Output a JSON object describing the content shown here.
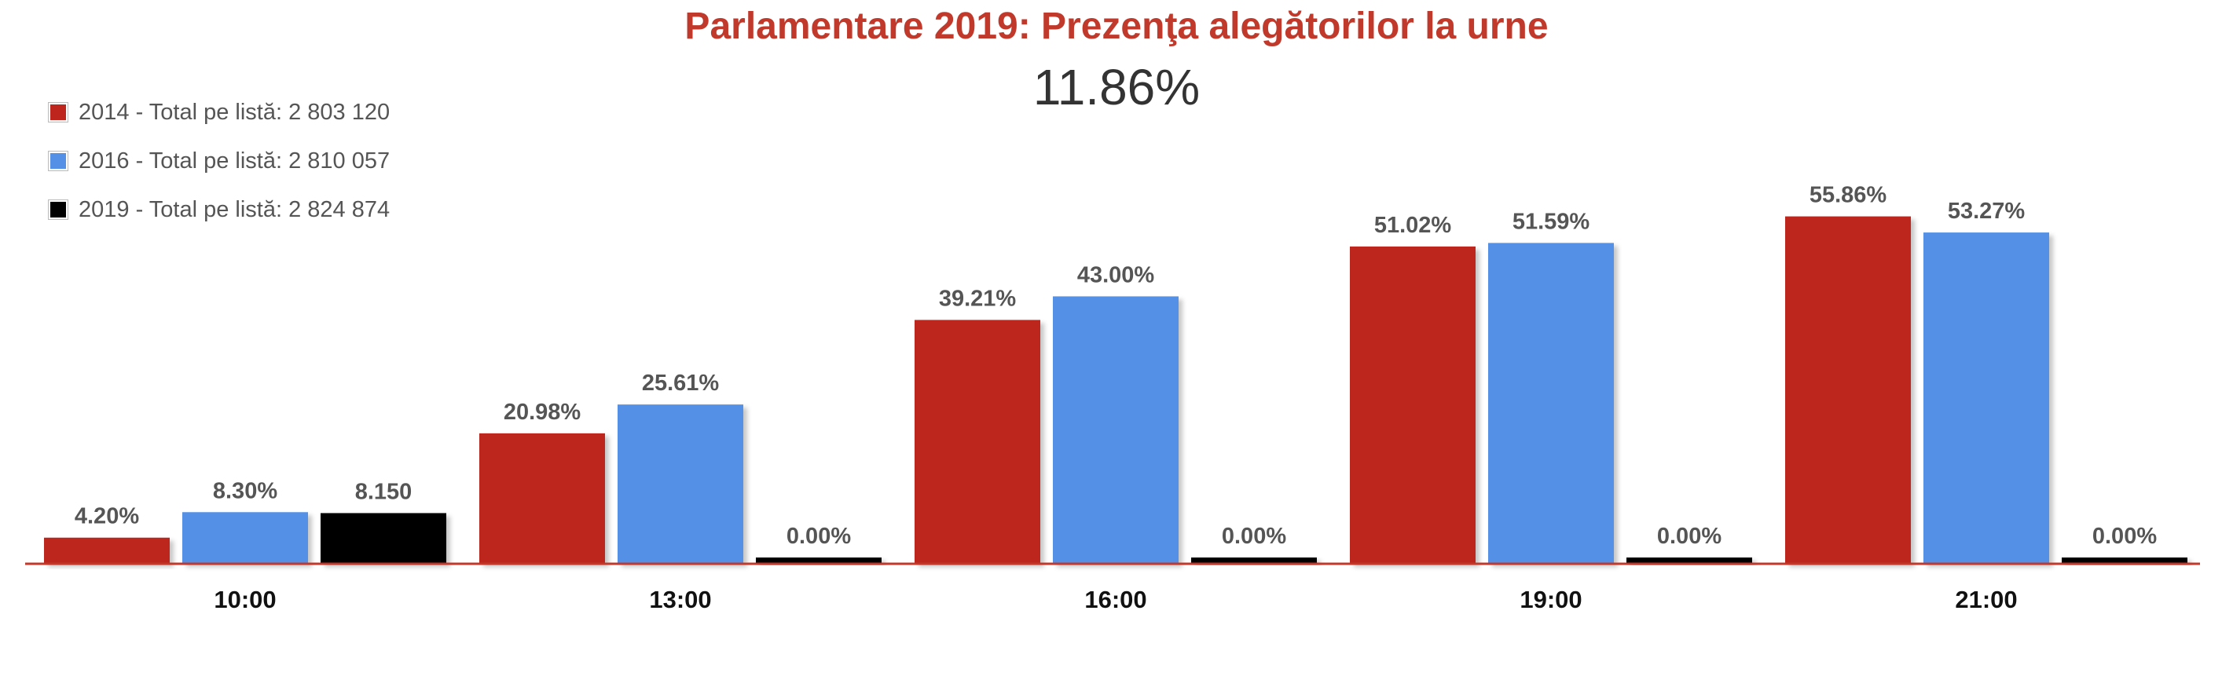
{
  "chart_data": {
    "type": "bar",
    "title": "Parlamentare 2019: Prezenţa alegătorilor la urne",
    "subtitle": "11.86%",
    "categories": [
      "10:00",
      "13:00",
      "16:00",
      "19:00",
      "21:00"
    ],
    "series": [
      {
        "name": "2014 - Total pe listă: 2 803 120",
        "color": "#bd251d",
        "values": [
          4.2,
          20.98,
          39.21,
          51.02,
          55.86
        ],
        "labels": [
          "4.20%",
          "20.98%",
          "39.21%",
          "51.02%",
          "55.86%"
        ]
      },
      {
        "name": "2016 - Total pe listă: 2 810 057",
        "color": "#5390e6",
        "values": [
          8.3,
          25.61,
          43.0,
          51.59,
          53.27
        ],
        "labels": [
          "8.30%",
          "25.61%",
          "43.00%",
          "51.59%",
          "53.27%"
        ]
      },
      {
        "name": "2019 - Total pe listă: 2 824 874",
        "color": "#000000",
        "values": [
          8.15,
          0,
          0,
          0,
          0
        ],
        "labels": [
          "8.150",
          "0.00%",
          "0.00%",
          "0.00%",
          "0.00%"
        ]
      }
    ],
    "ylim": [
      0,
      60
    ],
    "grid": false,
    "legend_position": "top-left",
    "baseline_color": "#c0392b"
  }
}
